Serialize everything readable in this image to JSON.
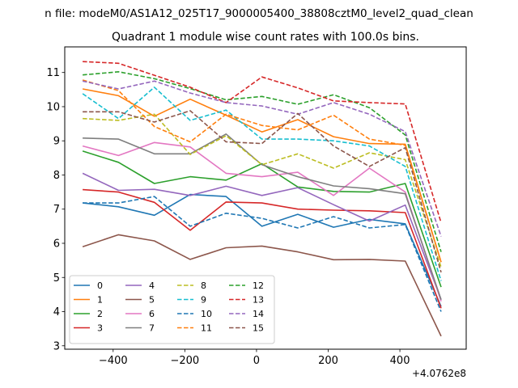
{
  "chart_data": {
    "type": "line",
    "suptitle": "n file: modeM0/AS1A12_025T17_9000005400_38808cztM0_level2_quad_clean",
    "title": "Quadrant 1 module wise count rates with 100.0s bins.",
    "xlabel": "",
    "ylabel": "",
    "x_offset_label": "+4.0762e8",
    "xlim": [
      -535,
      585
    ],
    "ylim": [
      2.9,
      11.75
    ],
    "xticks": [
      -400,
      -200,
      0,
      200,
      400
    ],
    "xtick_labels": [
      "−400",
      "−200",
      "0",
      "200",
      "400"
    ],
    "yticks": [
      3,
      4,
      5,
      6,
      7,
      8,
      9,
      10,
      11
    ],
    "ytick_labels": [
      "3",
      "4",
      "5",
      "6",
      "7",
      "8",
      "9",
      "10",
      "11"
    ],
    "x": [
      -485,
      -385,
      -285,
      -185,
      -85,
      15,
      115,
      215,
      315,
      415,
      515
    ],
    "legend_position": "lower-left",
    "legend_columns": 4,
    "series": [
      {
        "name": "0",
        "color": "#1f77b4",
        "dash": "solid",
        "values": [
          7.18,
          7.07,
          6.82,
          7.43,
          7.37,
          6.5,
          6.85,
          6.47,
          6.7,
          6.57,
          4.15
        ]
      },
      {
        "name": "1",
        "color": "#ff7f0e",
        "dash": "solid",
        "values": [
          10.52,
          10.32,
          9.72,
          10.22,
          9.75,
          9.26,
          9.62,
          9.12,
          8.92,
          8.9,
          5.45
        ]
      },
      {
        "name": "2",
        "color": "#2ca02c",
        "dash": "solid",
        "values": [
          8.7,
          8.37,
          7.75,
          7.95,
          7.85,
          8.33,
          7.65,
          7.52,
          7.5,
          7.75,
          4.72
        ]
      },
      {
        "name": "3",
        "color": "#d62728",
        "dash": "solid",
        "values": [
          7.57,
          7.5,
          7.2,
          6.38,
          7.21,
          7.18,
          7.0,
          6.97,
          6.95,
          6.9,
          4.1
        ]
      },
      {
        "name": "4",
        "color": "#9467bd",
        "dash": "solid",
        "values": [
          8.05,
          7.55,
          7.58,
          7.4,
          7.67,
          7.4,
          7.63,
          7.13,
          6.65,
          7.12,
          4.35
        ]
      },
      {
        "name": "5",
        "color": "#8c564b",
        "dash": "solid",
        "values": [
          5.9,
          6.25,
          6.07,
          5.53,
          5.87,
          5.92,
          5.75,
          5.52,
          5.53,
          5.48,
          3.28
        ]
      },
      {
        "name": "6",
        "color": "#e377c2",
        "dash": "solid",
        "values": [
          8.85,
          8.57,
          8.95,
          8.82,
          8.05,
          7.95,
          8.08,
          7.4,
          8.2,
          7.5,
          4.3
        ]
      },
      {
        "name": "7",
        "color": "#7f7f7f",
        "dash": "solid",
        "values": [
          9.08,
          9.05,
          8.62,
          8.62,
          9.2,
          8.3,
          7.95,
          7.68,
          7.6,
          7.45,
          4.35
        ]
      },
      {
        "name": "8",
        "color": "#bcbd22",
        "dash": "dashed",
        "values": [
          9.65,
          9.6,
          9.78,
          8.6,
          9.15,
          8.3,
          8.62,
          8.2,
          8.65,
          8.45,
          5.3
        ]
      },
      {
        "name": "9",
        "color": "#17becf",
        "dash": "dashed",
        "values": [
          10.38,
          9.65,
          10.57,
          9.6,
          9.9,
          9.05,
          9.05,
          9.0,
          8.85,
          8.25,
          4.9
        ]
      },
      {
        "name": "10",
        "color": "#1f77b4",
        "dash": "dashed",
        "values": [
          7.18,
          7.18,
          7.37,
          6.5,
          6.88,
          6.73,
          6.45,
          6.78,
          6.45,
          6.55,
          4.0
        ]
      },
      {
        "name": "11",
        "color": "#ff7f0e",
        "dash": "dashed",
        "values": [
          10.78,
          10.47,
          9.42,
          8.97,
          9.78,
          9.45,
          9.32,
          9.75,
          9.05,
          8.87,
          5.45
        ]
      },
      {
        "name": "12",
        "color": "#2ca02c",
        "dash": "dashed",
        "values": [
          10.93,
          11.02,
          10.82,
          10.53,
          10.2,
          10.3,
          10.07,
          10.35,
          9.97,
          9.17,
          5.75
        ]
      },
      {
        "name": "13",
        "color": "#d62728",
        "dash": "dashed",
        "values": [
          11.32,
          11.27,
          10.92,
          10.57,
          10.12,
          10.87,
          10.55,
          10.17,
          10.12,
          10.08,
          6.6
        ]
      },
      {
        "name": "14",
        "color": "#9467bd",
        "dash": "dashed",
        "values": [
          10.75,
          10.52,
          10.75,
          10.4,
          10.12,
          10.02,
          9.78,
          10.12,
          9.78,
          9.27,
          6.2
        ]
      },
      {
        "name": "15",
        "color": "#8c564b",
        "dash": "dashed",
        "values": [
          9.85,
          9.85,
          9.55,
          9.88,
          8.97,
          8.92,
          9.8,
          8.85,
          8.25,
          8.8,
          5.15
        ]
      }
    ]
  }
}
